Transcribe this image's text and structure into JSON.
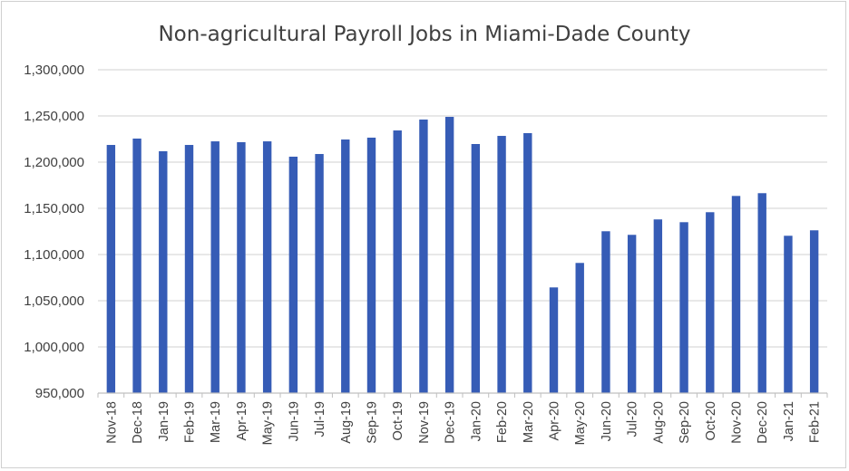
{
  "chart_data": {
    "type": "bar",
    "title": "Non-agricultural Payroll Jobs in Miami-Dade County",
    "xlabel": "",
    "ylabel": "",
    "ylim": [
      950000,
      1300000
    ],
    "yticks": [
      950000,
      1000000,
      1050000,
      1100000,
      1150000,
      1200000,
      1250000,
      1300000
    ],
    "ytick_labels": [
      "950,000",
      "1,000,000",
      "1,050,000",
      "1,100,000",
      "1,150,000",
      "1,200,000",
      "1,250,000",
      "1,300,000"
    ],
    "grid": true,
    "bar_color": "#365CB6",
    "categories": [
      "Nov-18",
      "Dec-18",
      "Jan-19",
      "Feb-19",
      "Mar-19",
      "Apr-19",
      "May-19",
      "Jun-19",
      "Jul-19",
      "Aug-19",
      "Sep-19",
      "Oct-19",
      "Nov-19",
      "Dec-19",
      "Jan-20",
      "Feb-20",
      "Mar-20",
      "Apr-20",
      "May-20",
      "Jun-20",
      "Jul-20",
      "Aug-20",
      "Sep-20",
      "Oct-20",
      "Nov-20",
      "Dec-20",
      "Jan-21",
      "Feb-21"
    ],
    "values": [
      1218600,
      1225500,
      1211800,
      1218600,
      1222500,
      1221600,
      1222500,
      1205900,
      1208800,
      1224500,
      1226500,
      1234300,
      1246100,
      1249000,
      1219600,
      1228400,
      1231400,
      1064400,
      1090900,
      1125200,
      1121300,
      1138000,
      1135000,
      1145800,
      1163400,
      1166400,
      1120300,
      1126200
    ]
  }
}
